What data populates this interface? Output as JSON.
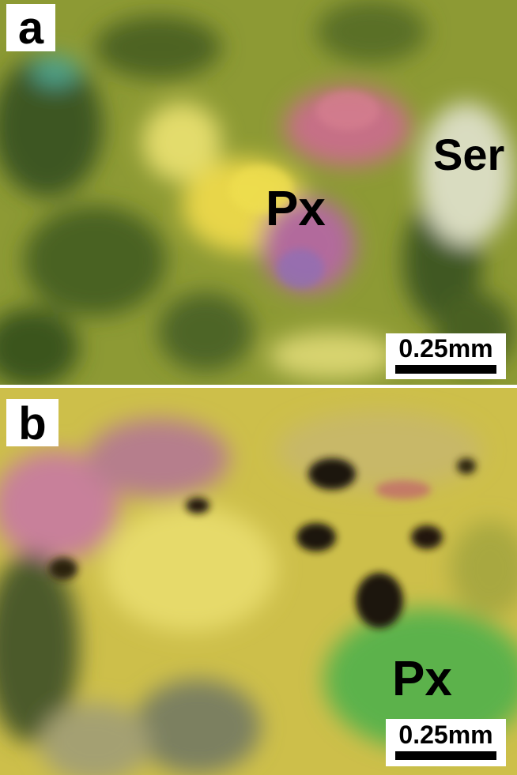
{
  "panels": [
    {
      "label": "a",
      "annotations": [
        "Px",
        "Ser"
      ],
      "scale_bar": "0.25mm"
    },
    {
      "label": "b",
      "annotations": [
        "Px"
      ],
      "scale_bar": "0.25mm"
    }
  ]
}
